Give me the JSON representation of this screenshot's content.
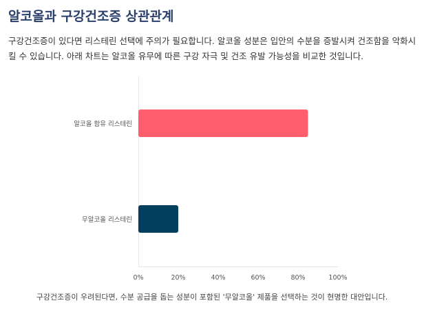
{
  "page": {
    "title": "알코올과 구강건조증 상관관계",
    "description": "구강건조증이 있다면 리스테린 선택에 주의가 필요합니다. 알코올 성분은 입안의 수분을 증발시켜 건조함을 악화시킬 수 있습니다. 아래 차트는 알코올 유무에 따른 구강 자극 및 건조 유발 가능성을 비교한 것입니다.",
    "footer_note": "구강건조증이 우려된다면, 수분 공급을 돕는 성분이 포함된 '무알코올' 제품을 선택하는 것이 현명한 대안입니다."
  },
  "chart_data": {
    "type": "bar",
    "orientation": "horizontal",
    "categories": [
      "알코올 함유 리스테린",
      "무알코올 리스테린"
    ],
    "series": [
      {
        "values": [
          85,
          20
        ],
        "colors": [
          "#ff5e6c",
          "#023e5e"
        ]
      }
    ],
    "xlim": [
      0,
      100
    ],
    "xticks": [
      0,
      20,
      40,
      60,
      80,
      100
    ],
    "tick_suffix": "%",
    "grid": false
  }
}
